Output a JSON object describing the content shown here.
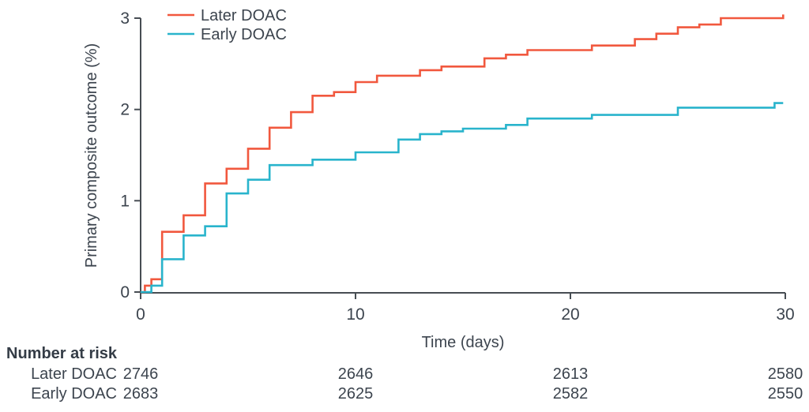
{
  "chart_data": {
    "type": "line",
    "subtype": "step-after",
    "title": "",
    "xlabel": "Time (days)",
    "ylabel": "Primary composite outcome (%)",
    "xlim": [
      0,
      30
    ],
    "ylim": [
      0,
      3
    ],
    "xticks": [
      "0",
      "10",
      "20",
      "30"
    ],
    "xtick_values": [
      0,
      10,
      20,
      30
    ],
    "yticks": [
      "0",
      "1",
      "2",
      "3"
    ],
    "ytick_values": [
      0,
      1,
      2,
      3
    ],
    "grid": false,
    "legend_position": "top-left-inside",
    "series": [
      {
        "name": "Later DOAC",
        "color": "#f1583e",
        "steps": [
          [
            0,
            0
          ],
          [
            0.2,
            0.07
          ],
          [
            0.5,
            0.14
          ],
          [
            1,
            0.66
          ],
          [
            2,
            0.84
          ],
          [
            3,
            1.19
          ],
          [
            4,
            1.35
          ],
          [
            5,
            1.57
          ],
          [
            6,
            1.8
          ],
          [
            7,
            1.97
          ],
          [
            8,
            2.15
          ],
          [
            9,
            2.19
          ],
          [
            10,
            2.3
          ],
          [
            11,
            2.37
          ],
          [
            13,
            2.43
          ],
          [
            14,
            2.47
          ],
          [
            16,
            2.56
          ],
          [
            17,
            2.6
          ],
          [
            18,
            2.65
          ],
          [
            21,
            2.7
          ],
          [
            23,
            2.77
          ],
          [
            24,
            2.83
          ],
          [
            25,
            2.9
          ],
          [
            26,
            2.93
          ],
          [
            27,
            3.0
          ],
          [
            29.9,
            3.04
          ]
        ]
      },
      {
        "name": "Early DOAC",
        "color": "#29b4cc",
        "steps": [
          [
            0,
            0
          ],
          [
            0.5,
            0.07
          ],
          [
            1,
            0.36
          ],
          [
            2,
            0.62
          ],
          [
            3,
            0.72
          ],
          [
            4,
            1.08
          ],
          [
            5,
            1.23
          ],
          [
            6,
            1.39
          ],
          [
            8,
            1.45
          ],
          [
            10,
            1.53
          ],
          [
            12,
            1.67
          ],
          [
            13,
            1.73
          ],
          [
            14,
            1.76
          ],
          [
            15,
            1.79
          ],
          [
            17,
            1.83
          ],
          [
            18,
            1.9
          ],
          [
            21,
            1.94
          ],
          [
            25,
            2.02
          ],
          [
            29.5,
            2.07
          ],
          [
            29.9,
            2.07
          ]
        ]
      }
    ]
  },
  "risk_table": {
    "header": "Number at risk",
    "time_columns": [
      0,
      10,
      20,
      30
    ],
    "rows": [
      {
        "label": "Later DOAC",
        "values": [
          "2746",
          "2646",
          "2613",
          "2580"
        ]
      },
      {
        "label": "Early DOAC",
        "values": [
          "2683",
          "2625",
          "2582",
          "2550"
        ]
      }
    ]
  },
  "colors": {
    "axis": "#474d53",
    "text": "#3c444e",
    "later_doac": "#f1583e",
    "early_doac": "#29b4cc",
    "background": "#ffffff"
  }
}
